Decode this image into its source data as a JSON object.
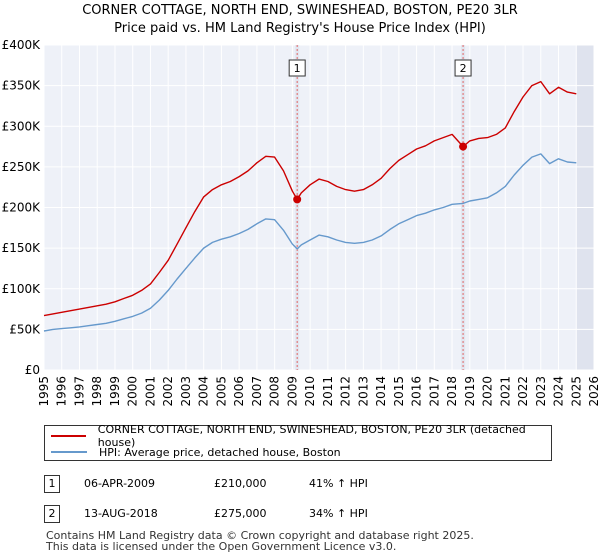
{
  "chart_data": {
    "type": "line",
    "title": "CORNER COTTAGE, NORTH END, SWINESHEAD, BOSTON, PE20 3LR",
    "subtitle": "Price paid vs. HM Land Registry's House Price Index (HPI)",
    "xlim": [
      1995,
      2026
    ],
    "ylim": [
      0,
      400000
    ],
    "x_ticks": [
      "1995",
      "1996",
      "1997",
      "1998",
      "1999",
      "2000",
      "2001",
      "2002",
      "2003",
      "2004",
      "2005",
      "2006",
      "2007",
      "2008",
      "2009",
      "2010",
      "2011",
      "2012",
      "2013",
      "2014",
      "2015",
      "2016",
      "2017",
      "2018",
      "2019",
      "2020",
      "2021",
      "2022",
      "2023",
      "2024",
      "2025",
      "2026"
    ],
    "y_ticks": [
      {
        "value": 0,
        "label": "£0"
      },
      {
        "value": 50000,
        "label": "£50K"
      },
      {
        "value": 100000,
        "label": "£100K"
      },
      {
        "value": 150000,
        "label": "£150K"
      },
      {
        "value": 200000,
        "label": "£200K"
      },
      {
        "value": 250000,
        "label": "£250K"
      },
      {
        "value": 300000,
        "label": "£300K"
      },
      {
        "value": 350000,
        "label": "£350K"
      },
      {
        "value": 400000,
        "label": "£400K"
      }
    ],
    "series": [
      {
        "name": "CORNER COTTAGE, NORTH END, SWINESHEAD, BOSTON, PE20 3LR (detached house)",
        "color": "#cc0000",
        "x": [
          1995.0,
          1995.5,
          1996.0,
          1996.5,
          1997.0,
          1997.5,
          1998.0,
          1998.5,
          1999.0,
          1999.5,
          2000.0,
          2000.5,
          2001.0,
          2001.5,
          2002.0,
          2002.5,
          2003.0,
          2003.5,
          2004.0,
          2004.5,
          2005.0,
          2005.5,
          2006.0,
          2006.5,
          2007.0,
          2007.5,
          2008.0,
          2008.5,
          2009.0,
          2009.27,
          2009.5,
          2010.0,
          2010.5,
          2011.0,
          2011.5,
          2012.0,
          2012.5,
          2013.0,
          2013.5,
          2014.0,
          2014.5,
          2015.0,
          2015.5,
          2016.0,
          2016.5,
          2017.0,
          2017.5,
          2018.0,
          2018.62,
          2019.0,
          2019.5,
          2020.0,
          2020.5,
          2021.0,
          2021.5,
          2022.0,
          2022.5,
          2023.0,
          2023.5,
          2024.0,
          2024.5,
          2025.0
        ],
        "values": [
          67000,
          69000,
          71000,
          73000,
          75000,
          77000,
          79000,
          81000,
          84000,
          88000,
          92000,
          98000,
          106000,
          120000,
          135000,
          155000,
          175000,
          195000,
          213000,
          222000,
          228000,
          232000,
          238000,
          245000,
          255000,
          263000,
          262000,
          245000,
          220000,
          210000,
          218000,
          228000,
          235000,
          232000,
          226000,
          222000,
          220000,
          222000,
          228000,
          236000,
          248000,
          258000,
          265000,
          272000,
          276000,
          282000,
          286000,
          290000,
          275000,
          282000,
          285000,
          286000,
          290000,
          298000,
          318000,
          336000,
          350000,
          355000,
          340000,
          348000,
          342000,
          340000
        ]
      },
      {
        "name": "HPI: Average price, detached house, Boston",
        "color": "#6699cc",
        "x": [
          1995.0,
          1995.5,
          1996.0,
          1996.5,
          1997.0,
          1997.5,
          1998.0,
          1998.5,
          1999.0,
          1999.5,
          2000.0,
          2000.5,
          2001.0,
          2001.5,
          2002.0,
          2002.5,
          2003.0,
          2003.5,
          2004.0,
          2004.5,
          2005.0,
          2005.5,
          2006.0,
          2006.5,
          2007.0,
          2007.5,
          2008.0,
          2008.5,
          2009.0,
          2009.27,
          2009.5,
          2010.0,
          2010.5,
          2011.0,
          2011.5,
          2012.0,
          2012.5,
          2013.0,
          2013.5,
          2014.0,
          2014.5,
          2015.0,
          2015.5,
          2016.0,
          2016.5,
          2017.0,
          2017.5,
          2018.0,
          2018.62,
          2019.0,
          2019.5,
          2020.0,
          2020.5,
          2021.0,
          2021.5,
          2022.0,
          2022.5,
          2023.0,
          2023.5,
          2024.0,
          2024.5,
          2025.0
        ],
        "values": [
          48000,
          50000,
          51000,
          52000,
          53000,
          54500,
          56000,
          57500,
          60000,
          63000,
          66000,
          70000,
          76000,
          86000,
          98000,
          112000,
          125000,
          138000,
          150000,
          157000,
          161000,
          164000,
          168000,
          173000,
          180000,
          186000,
          185000,
          172000,
          155000,
          149000,
          154000,
          160000,
          166000,
          164000,
          160000,
          157000,
          156000,
          157000,
          160000,
          165000,
          173000,
          180000,
          185000,
          190000,
          193000,
          197000,
          200000,
          204000,
          205000,
          208000,
          210000,
          212000,
          218000,
          226000,
          240000,
          252000,
          262000,
          266000,
          254000,
          260000,
          256000,
          255000
        ]
      }
    ],
    "markers": [
      {
        "label": "1",
        "x": 2009.27,
        "y": 210000
      },
      {
        "label": "2",
        "x": 2018.62,
        "y": 275000
      }
    ],
    "projection_start_x": 2025.0,
    "grid": true
  },
  "legend": {
    "property_label": "CORNER COTTAGE, NORTH END, SWINESHEAD, BOSTON, PE20 3LR (detached house)",
    "hpi_label": "HPI: Average price, detached house, Boston"
  },
  "transactions": [
    {
      "num": "1",
      "date": "06-APR-2009",
      "price": "£210,000",
      "change": "41% ↑ HPI"
    },
    {
      "num": "2",
      "date": "13-AUG-2018",
      "price": "£275,000",
      "change": "34% ↑ HPI"
    }
  ],
  "footer": {
    "line1": "Contains HM Land Registry data © Crown copyright and database right 2025.",
    "line2": "This data is licensed under the Open Government Licence v3.0."
  }
}
